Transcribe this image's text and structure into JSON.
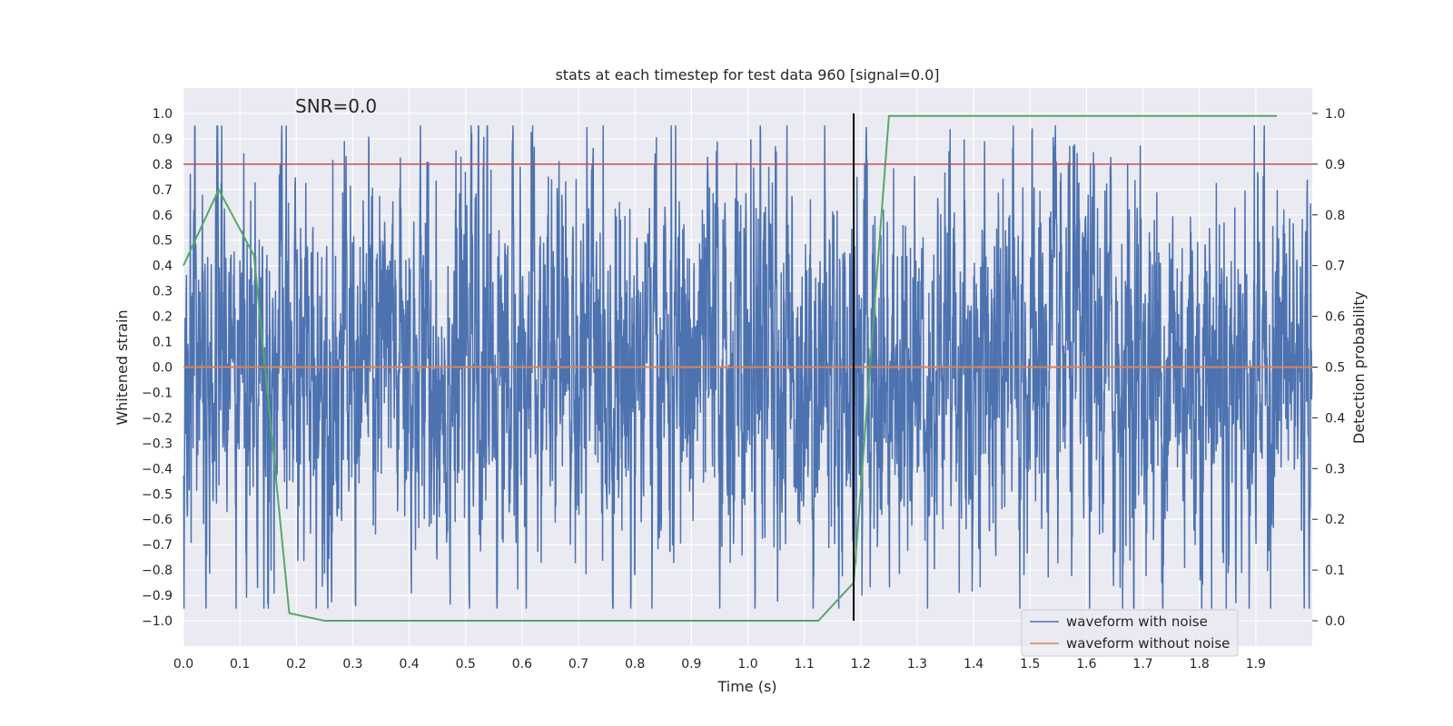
{
  "chart_data": {
    "type": "line",
    "title": "stats at each timestep for test data 960 [signal=0.0]",
    "xlabel": "Time (s)",
    "ylabel": "Whitened strain",
    "y2label": "Detection probability",
    "annotation": "SNR=0.0",
    "xlim": [
      0.0,
      2.0
    ],
    "ylim": [
      -1.1,
      1.1
    ],
    "y2lim": [
      -0.05,
      1.05
    ],
    "x_ticks": [
      0.0,
      0.1,
      0.2,
      0.3,
      0.4,
      0.5,
      0.6,
      0.7,
      0.8,
      0.9,
      1.0,
      1.1,
      1.2,
      1.3,
      1.4,
      1.5,
      1.6,
      1.7,
      1.8,
      1.9
    ],
    "y_ticks": [
      -1.0,
      -0.9,
      -0.8,
      -0.7,
      -0.6,
      -0.5,
      -0.4,
      -0.3,
      -0.2,
      -0.1,
      0.0,
      0.1,
      0.2,
      0.3,
      0.4,
      0.5,
      0.6,
      0.7,
      0.8,
      0.9,
      1.0
    ],
    "y2_ticks": [
      0.0,
      0.1,
      0.2,
      0.3,
      0.4,
      0.5,
      0.6,
      0.7,
      0.8,
      0.9,
      1.0
    ],
    "x_tick_labels": [
      "0.0",
      "0.1",
      "0.2",
      "0.3",
      "0.4",
      "0.5",
      "0.6",
      "0.7",
      "0.8",
      "0.9",
      "1.0",
      "1.1",
      "1.2",
      "1.3",
      "1.4",
      "1.5",
      "1.6",
      "1.7",
      "1.8",
      "1.9"
    ],
    "y_tick_labels": [
      "−1.0",
      "−0.9",
      "−0.8",
      "−0.7",
      "−0.6",
      "−0.5",
      "−0.4",
      "−0.3",
      "−0.2",
      "−0.1",
      "0.0",
      "0.1",
      "0.2",
      "0.3",
      "0.4",
      "0.5",
      "0.6",
      "0.7",
      "0.8",
      "0.9",
      "1.0"
    ],
    "y2_tick_labels": [
      "0.0",
      "0.1",
      "0.2",
      "0.3",
      "0.4",
      "0.5",
      "0.6",
      "0.7",
      "0.8",
      "0.9",
      "1.0"
    ],
    "grid": true,
    "legend_position": "lower-right",
    "series": [
      {
        "name": "waveform with noise",
        "color": "#4c72b0",
        "axis": "left",
        "kind": "noise",
        "sample_rate": 2048,
        "amplitude_range": [
          -0.95,
          0.95
        ]
      },
      {
        "name": "waveform without noise",
        "color": "#dd8452",
        "axis": "left",
        "x": [
          0.0,
          2.0
        ],
        "y": [
          0.0,
          0.0
        ]
      },
      {
        "color": "#55a868",
        "axis": "right",
        "x": [
          0.0,
          0.0625,
          0.125,
          0.1875,
          0.25,
          0.3125,
          0.375,
          0.4375,
          0.5,
          0.5625,
          0.625,
          0.6875,
          0.75,
          0.8125,
          0.875,
          0.9375,
          1.0,
          1.0625,
          1.125,
          1.1875,
          1.25,
          1.3125,
          1.375,
          1.4375,
          1.5,
          1.5625,
          1.625,
          1.6875,
          1.75,
          1.8125,
          1.875,
          1.9375
        ],
        "y": [
          0.7,
          0.85,
          0.72,
          0.015,
          0.0,
          0.0,
          0.0,
          0.0,
          0.0,
          0.0,
          0.0,
          0.0,
          0.0,
          0.0,
          0.0,
          0.0,
          0.0,
          0.0,
          0.0,
          0.075,
          0.995,
          0.995,
          0.995,
          0.995,
          0.995,
          0.995,
          0.995,
          0.995,
          0.995,
          0.995,
          0.995,
          0.995
        ]
      },
      {
        "color": "#c44e52",
        "axis": "left",
        "kind": "hline",
        "y": 0.8
      },
      {
        "color": "#000000",
        "axis": "left",
        "kind": "vline",
        "x": 1.1875,
        "y_range": [
          -1.0,
          1.0
        ]
      }
    ]
  }
}
